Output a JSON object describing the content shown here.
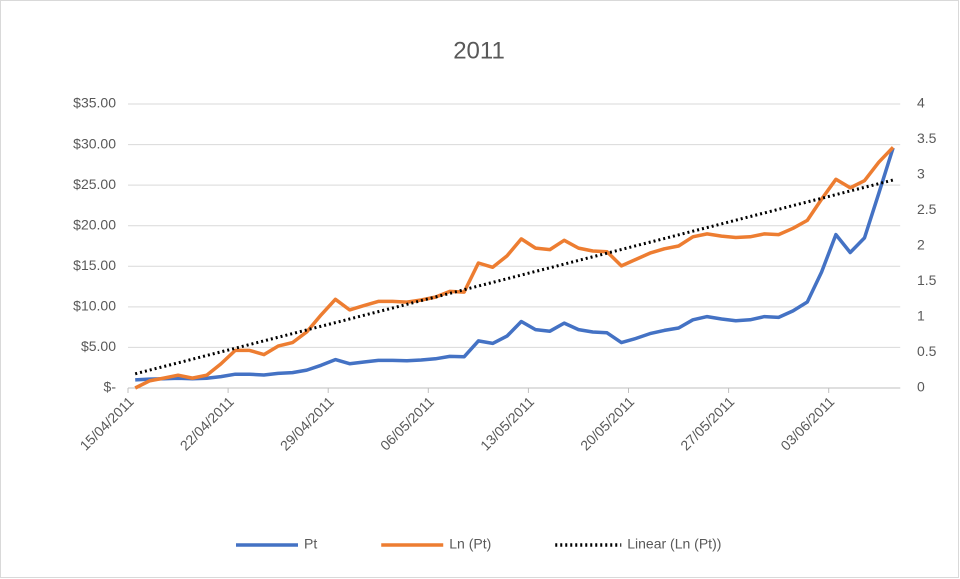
{
  "chart_data": {
    "type": "line",
    "title": "2011",
    "x": [
      "15/04/2011",
      "16/04/2011",
      "17/04/2011",
      "18/04/2011",
      "19/04/2011",
      "20/04/2011",
      "21/04/2011",
      "22/04/2011",
      "23/04/2011",
      "24/04/2011",
      "25/04/2011",
      "26/04/2011",
      "27/04/2011",
      "28/04/2011",
      "29/04/2011",
      "30/04/2011",
      "01/05/2011",
      "02/05/2011",
      "03/05/2011",
      "04/05/2011",
      "05/05/2011",
      "06/05/2011",
      "07/05/2011",
      "08/05/2011",
      "09/05/2011",
      "10/05/2011",
      "11/05/2011",
      "12/05/2011",
      "13/05/2011",
      "14/05/2011",
      "15/05/2011",
      "16/05/2011",
      "17/05/2011",
      "18/05/2011",
      "19/05/2011",
      "20/05/2011",
      "21/05/2011",
      "22/05/2011",
      "23/05/2011",
      "24/05/2011",
      "25/05/2011",
      "26/05/2011",
      "27/05/2011",
      "28/05/2011",
      "29/05/2011",
      "30/05/2011",
      "31/05/2011",
      "01/06/2011",
      "02/06/2011",
      "03/06/2011",
      "04/06/2011",
      "05/06/2011",
      "06/06/2011",
      "07/06/2011"
    ],
    "xticks": [
      "15/04/2011",
      "22/04/2011",
      "29/04/2011",
      "06/05/2011",
      "13/05/2011",
      "20/05/2011",
      "27/05/2011",
      "03/06/2011"
    ],
    "series": [
      {
        "name": "Pt",
        "color": "#4472c4",
        "values": [
          1.0,
          1.1,
          1.15,
          1.2,
          1.15,
          1.2,
          1.4,
          1.7,
          1.7,
          1.6,
          1.8,
          1.9,
          2.2,
          2.8,
          3.5,
          3.0,
          3.2,
          3.4,
          3.4,
          3.35,
          3.45,
          3.6,
          3.9,
          3.85,
          5.8,
          5.5,
          6.4,
          8.2,
          7.2,
          7.0,
          8.0,
          7.2,
          6.9,
          6.8,
          5.6,
          6.1,
          6.7,
          7.1,
          7.4,
          8.4,
          8.8,
          8.5,
          8.3,
          8.4,
          8.8,
          8.7,
          9.5,
          10.6,
          14.3,
          18.9,
          16.7,
          18.5,
          24.0,
          29.6
        ]
      },
      {
        "name": "Ln (Pt)",
        "color": "#ed7d31",
        "axis": "y2",
        "values": [
          0.0,
          0.1,
          0.14,
          0.18,
          0.14,
          0.18,
          0.34,
          0.53,
          0.53,
          0.47,
          0.59,
          0.64,
          0.79,
          1.03,
          1.25,
          1.1,
          1.16,
          1.22,
          1.22,
          1.21,
          1.24,
          1.28,
          1.36,
          1.35,
          1.76,
          1.7,
          1.86,
          2.1,
          1.97,
          1.95,
          2.08,
          1.97,
          1.93,
          1.92,
          1.72,
          1.81,
          1.9,
          1.96,
          2.0,
          2.13,
          2.17,
          2.14,
          2.12,
          2.13,
          2.17,
          2.16,
          2.25,
          2.36,
          2.66,
          2.94,
          2.82,
          2.92,
          3.18,
          3.39
        ]
      },
      {
        "name": "Linear (Ln (Pt))",
        "color": "#000000",
        "axis": "y2",
        "dash": "dotted",
        "x": [
          "15/04/2011",
          "07/06/2011"
        ],
        "values": [
          0.2,
          2.93
        ]
      }
    ],
    "ylim": [
      0,
      35
    ],
    "yticks": [
      {
        "value": 0,
        "label": "$-"
      },
      {
        "value": 5,
        "label": "$5.00"
      },
      {
        "value": 10,
        "label": "$10.00"
      },
      {
        "value": 15,
        "label": "$15.00"
      },
      {
        "value": 20,
        "label": "$20.00"
      },
      {
        "value": 25,
        "label": "$25.00"
      },
      {
        "value": 30,
        "label": "$30.00"
      },
      {
        "value": 35,
        "label": "$35.00"
      }
    ],
    "y2lim": [
      0,
      4
    ],
    "y2ticks": [
      0,
      0.5,
      1,
      1.5,
      2,
      2.5,
      3,
      3.5,
      4
    ],
    "grid": true,
    "legend": "bottom"
  }
}
